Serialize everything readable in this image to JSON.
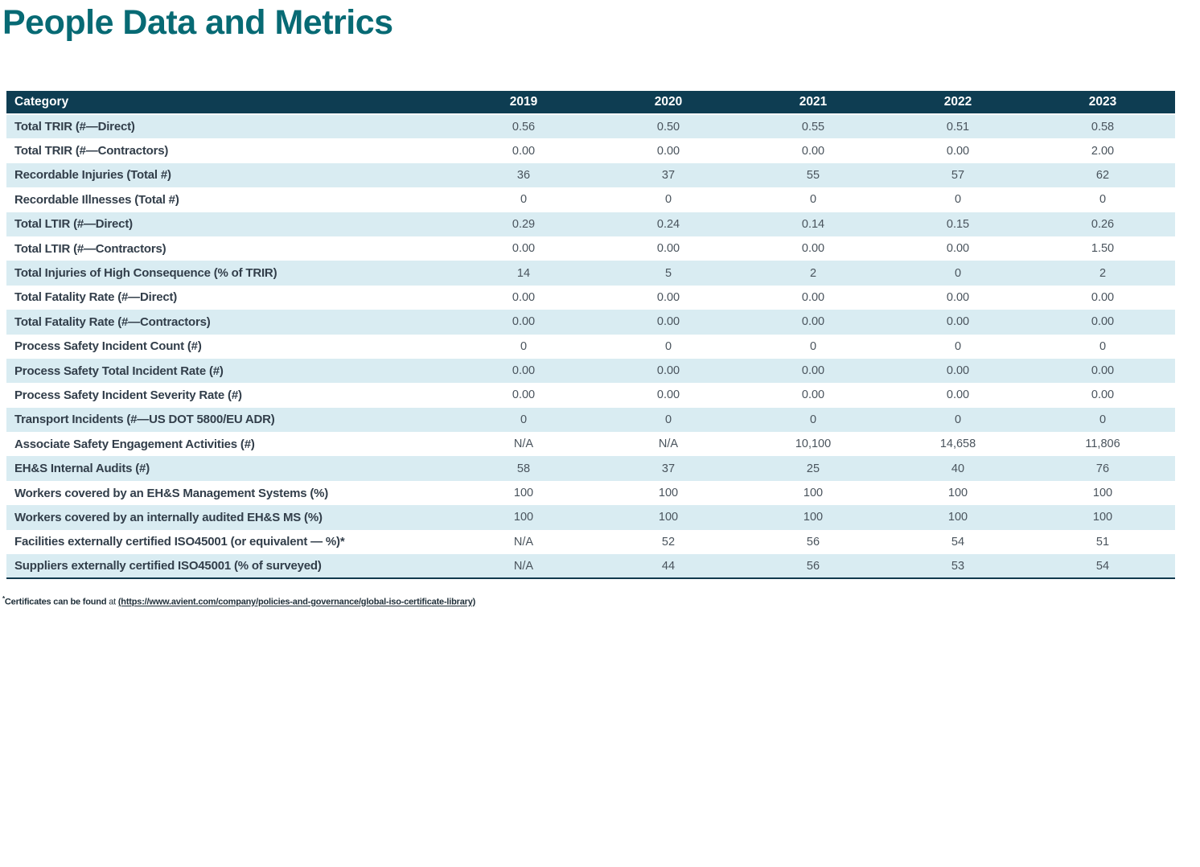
{
  "page": {
    "title": "People Data and Metrics"
  },
  "colors": {
    "title_teal": "#076a74",
    "header_background": "#0e3d52",
    "header_text": "#ffffff",
    "row_stripe_blue": "#d9ecf2",
    "row_white": "#ffffff",
    "category_text": "#323e4a",
    "value_text": "#49535c",
    "table_bottom_border": "#123a4e"
  },
  "table": {
    "columns": [
      "Category",
      "2019",
      "2020",
      "2021",
      "2022",
      "2023"
    ],
    "rows": [
      {
        "category": "Total TRIR (#—Direct)",
        "values": [
          "0.56",
          "0.50",
          "0.55",
          "0.51",
          "0.58"
        ]
      },
      {
        "category": "Total TRIR (#—Contractors)",
        "values": [
          "0.00",
          "0.00",
          "0.00",
          "0.00",
          "2.00"
        ]
      },
      {
        "category": "Recordable Injuries (Total #)",
        "values": [
          "36",
          "37",
          "55",
          "57",
          "62"
        ]
      },
      {
        "category": "Recordable Illnesses (Total #)",
        "values": [
          "0",
          "0",
          "0",
          "0",
          "0"
        ]
      },
      {
        "category": "Total LTIR (#—Direct)",
        "values": [
          "0.29",
          "0.24",
          "0.14",
          "0.15",
          "0.26"
        ]
      },
      {
        "category": "Total LTIR (#—Contractors)",
        "values": [
          "0.00",
          "0.00",
          "0.00",
          "0.00",
          "1.50"
        ]
      },
      {
        "category": "Total Injuries of High Consequence (% of TRIR)",
        "values": [
          "14",
          "5",
          "2",
          "0",
          "2"
        ]
      },
      {
        "category": "Total Fatality Rate (#—Direct)",
        "values": [
          "0.00",
          "0.00",
          "0.00",
          "0.00",
          "0.00"
        ]
      },
      {
        "category": "Total Fatality Rate (#—Contractors)",
        "values": [
          "0.00",
          "0.00",
          "0.00",
          "0.00",
          "0.00"
        ]
      },
      {
        "category": "Process Safety Incident Count (#)",
        "values": [
          "0",
          "0",
          "0",
          "0",
          "0"
        ]
      },
      {
        "category": "Process Safety Total Incident Rate (#)",
        "values": [
          "0.00",
          "0.00",
          "0.00",
          "0.00",
          "0.00"
        ]
      },
      {
        "category": "Process Safety Incident Severity Rate (#)",
        "values": [
          "0.00",
          "0.00",
          "0.00",
          "0.00",
          "0.00"
        ]
      },
      {
        "category": "Transport Incidents (#—US DOT 5800/EU ADR)",
        "values": [
          "0",
          "0",
          "0",
          "0",
          "0"
        ]
      },
      {
        "category": "Associate Safety Engagement Activities (#)",
        "values": [
          "N/A",
          "N/A",
          "10,100",
          "14,658",
          "11,806"
        ]
      },
      {
        "category": "EH&S Internal Audits (#)",
        "values": [
          "58",
          "37",
          "25",
          "40",
          "76"
        ]
      },
      {
        "category": "Workers covered by an EH&S Management Systems (%)",
        "values": [
          "100",
          "100",
          "100",
          "100",
          "100"
        ]
      },
      {
        "category": "Workers covered by an internally audited EH&S MS (%)",
        "values": [
          "100",
          "100",
          "100",
          "100",
          "100"
        ]
      },
      {
        "category": "Facilities externally certified ISO45001 (or equivalent — %)*",
        "values": [
          "N/A",
          "52",
          "56",
          "54",
          "51"
        ]
      },
      {
        "category": "Suppliers externally certified ISO45001 (% of surveyed)",
        "values": [
          "N/A",
          "44",
          "56",
          "53",
          "54"
        ]
      }
    ]
  },
  "footnote": {
    "asterisk": "*",
    "bold_text": "Certificates can be found",
    "regular_text": " at ",
    "link_text": "(https://www.avient.com/company/policies-and-governance/global-iso-certificate-library)"
  }
}
